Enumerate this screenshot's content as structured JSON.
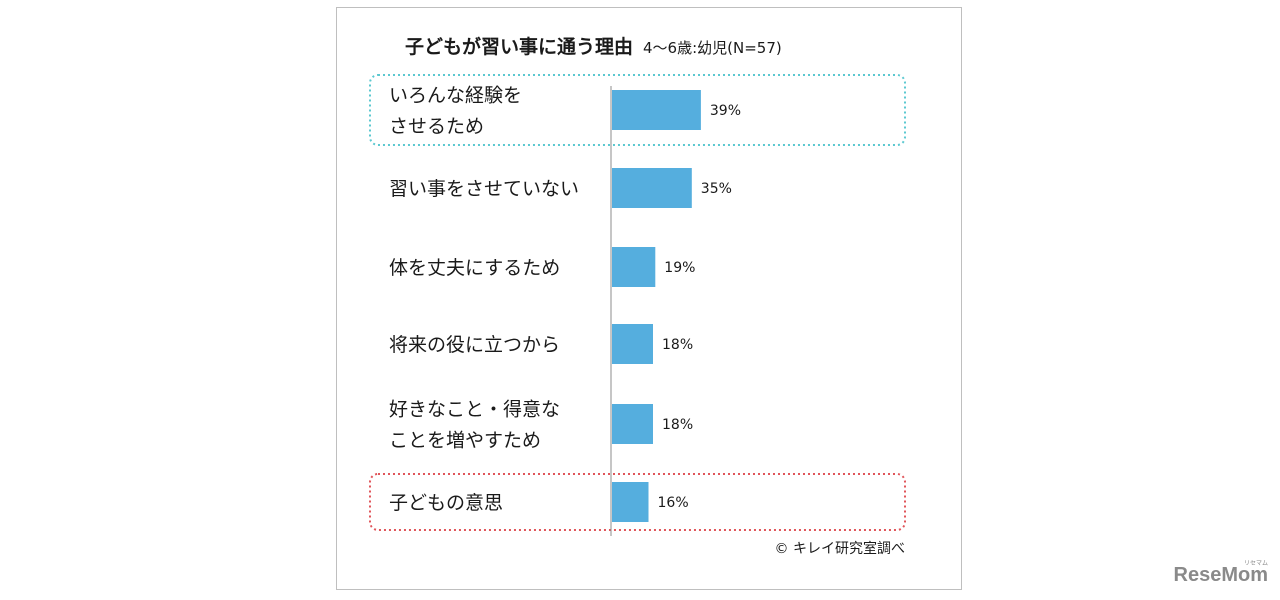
{
  "chart_data": {
    "type": "bar",
    "orientation": "horizontal",
    "title": "子どもが習い事に通う理由",
    "subtitle": "4〜6歳:幼児(N=57)",
    "categories": [
      "いろんな経験をさせるため",
      "習い事をさせていない",
      "体を丈夫にするため",
      "将来の役に立つから",
      "好きなこと・得意なことを増やすため",
      "子どもの意思"
    ],
    "category_lines": [
      [
        "いろんな経験を",
        "させるため"
      ],
      [
        "習い事をさせていない"
      ],
      [
        "体を丈夫にするため"
      ],
      [
        "将来の役に立つから"
      ],
      [
        "好きなこと・得意な",
        "ことを増やすため"
      ],
      [
        "子どもの意思"
      ]
    ],
    "values": [
      39,
      35,
      19,
      18,
      18,
      16
    ],
    "value_labels": [
      "39%",
      "35%",
      "19%",
      "18%",
      "18%",
      "16%"
    ],
    "unit": "%",
    "xlim": [
      0,
      100
    ],
    "grid": false,
    "highlighted": [
      {
        "index": 0,
        "color": "#5bc8d0"
      },
      {
        "index": 5,
        "color": "#e0555a"
      }
    ],
    "source": "© キレイ研究室調べ",
    "bar_color": "#55aede"
  },
  "brand": {
    "logo_text": "ReseMom",
    "logo_small": "リセマム"
  }
}
